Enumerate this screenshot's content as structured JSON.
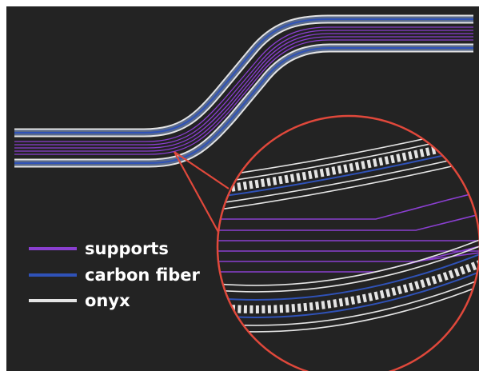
{
  "colors": {
    "background": "#232323",
    "supports": "#8a3fd0",
    "carbon_fiber": "#2f52b8",
    "onyx": "#e4e4e4",
    "callout": "#e0483b"
  },
  "legend": {
    "items": [
      {
        "label": "supports",
        "color": "#8a3fd0"
      },
      {
        "label": "carbon fiber",
        "color": "#2f52b8"
      },
      {
        "label": "onyx",
        "color": "#e4e4e4"
      }
    ]
  }
}
